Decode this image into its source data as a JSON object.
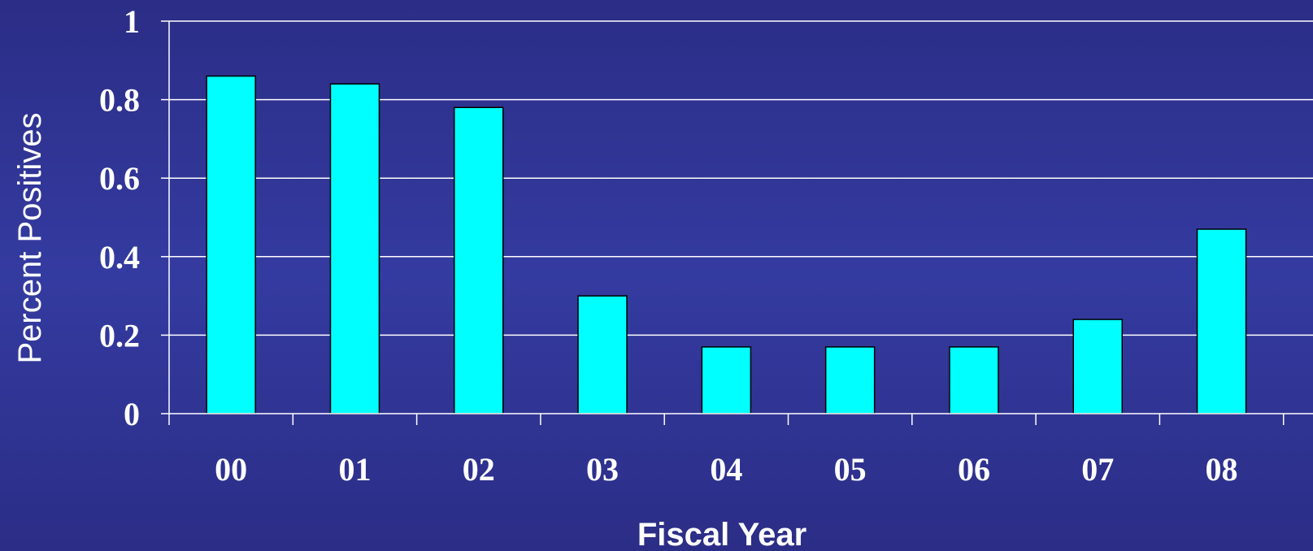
{
  "chart_data": {
    "type": "bar",
    "title": "",
    "xlabel": "Fiscal Year",
    "ylabel": "Percent Positives",
    "categories": [
      "00",
      "01",
      "02",
      "03",
      "04",
      "05",
      "06",
      "07",
      "08"
    ],
    "values": [
      0.86,
      0.84,
      0.78,
      0.3,
      0.17,
      0.17,
      0.17,
      0.24,
      0.47
    ],
    "ylim": [
      0,
      1
    ],
    "yticks": [
      "0",
      "0.2",
      "0.4",
      "0.6",
      "0.8",
      "1"
    ],
    "grid": true,
    "legend": "none",
    "colors": {
      "bar": "#00ffff",
      "bar_edge": "#000000",
      "grid": "#ffffff",
      "text": "#ffffff",
      "background": "#2f3394"
    }
  }
}
